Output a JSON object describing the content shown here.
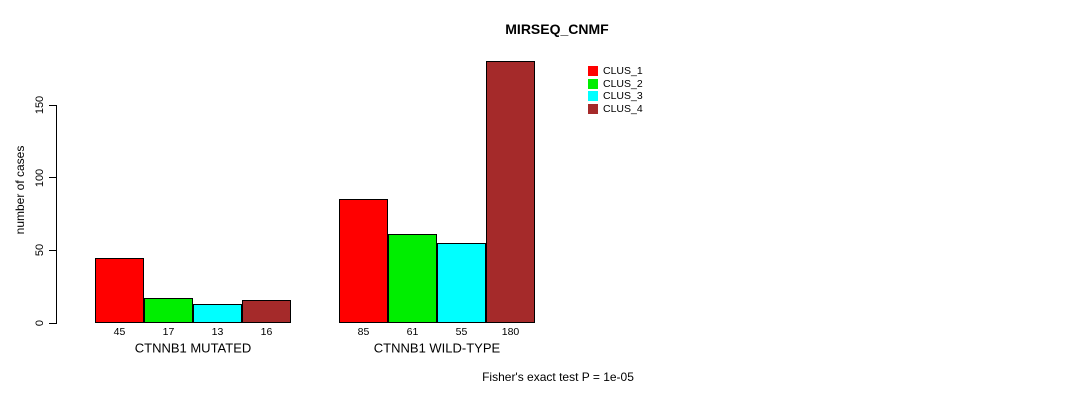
{
  "chart_data": {
    "type": "bar",
    "title": "MIRSEQ_CNMF",
    "xlabel": "",
    "ylabel": "number of cases",
    "categories": [
      "CTNNB1 MUTATED",
      "CTNNB1 WILD-TYPE"
    ],
    "series": [
      {
        "name": "CLUS_1",
        "color": "#FF0000",
        "values": [
          45,
          85
        ]
      },
      {
        "name": "CLUS_2",
        "color": "#00EE00",
        "values": [
          17,
          61
        ]
      },
      {
        "name": "CLUS_3",
        "color": "#00FFFF",
        "values": [
          13,
          55
        ]
      },
      {
        "name": "CLUS_4",
        "color": "#A52A2A",
        "values": [
          16,
          180
        ]
      }
    ],
    "yticks": [
      0,
      50,
      100,
      150
    ],
    "ylim": [
      0,
      180
    ],
    "bar_labels_shown": true,
    "grid": false,
    "legend_position": "top-center",
    "legend_entries": [
      "CLUS_1",
      "CLUS_2",
      "CLUS_3",
      "CLUS_4"
    ],
    "annotation": "Fisher's exact test P = 1e-05"
  },
  "colors": {
    "background": "#FFFFFF",
    "axis": "#000000",
    "text": "#000000",
    "bar_border": "#000000"
  }
}
